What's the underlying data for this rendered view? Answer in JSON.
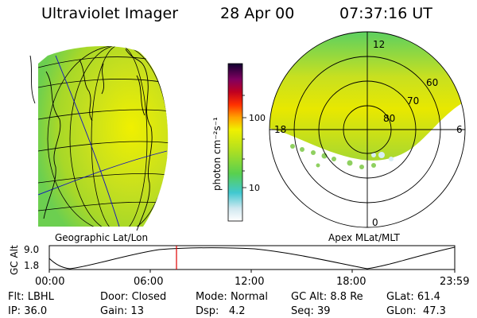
{
  "header": {
    "instrument": "Ultraviolet Imager",
    "date": "28 Apr 00",
    "time": "07:37:16 UT"
  },
  "colorbar": {
    "unit_label": "photon cm⁻²s⁻¹",
    "ticks": [
      "100",
      "10"
    ]
  },
  "geo_panel": {
    "label": "Geographic Lat/Lon"
  },
  "polar_panel": {
    "label": "Apex MLat/MLT",
    "mlt_labels": {
      "top": "12",
      "left": "18",
      "right": "6",
      "bottom": "0"
    },
    "lat_labels": [
      "60",
      "70",
      "80"
    ]
  },
  "altitude_plot": {
    "ylabel": "GC Alt",
    "yticks": [
      "9.0",
      "1.8"
    ],
    "xticks": [
      "00:00",
      "06:00",
      "12:00",
      "18:00",
      "23:59"
    ]
  },
  "status": [
    [
      {
        "label": "Flt:",
        "value": "LBHL"
      },
      {
        "label": "Door:",
        "value": "Closed"
      },
      {
        "label": "Mode:",
        "value": "Normal"
      },
      {
        "label": "GC Alt:",
        "value": "8.8 Re"
      },
      {
        "label": "GLat:",
        "value": "61.4"
      }
    ],
    [
      {
        "label": "IP:",
        "value": "36.0"
      },
      {
        "label": "Gain:",
        "value": "13"
      },
      {
        "label": "Dsp:",
        "value": "4.2"
      },
      {
        "label": "Seq:",
        "value": "39"
      },
      {
        "label": "GLon:",
        "value": "47.3"
      }
    ]
  ]
}
